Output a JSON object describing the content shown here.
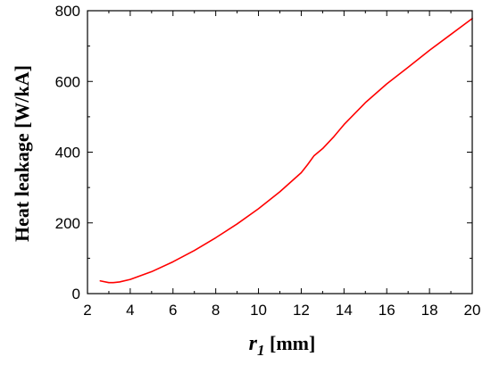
{
  "chart_data": {
    "type": "line",
    "title": "",
    "xlabel": {
      "symbol": "r",
      "subscript": "1",
      "unit": " [mm]"
    },
    "ylabel": "Heat leakage  [W/kA]",
    "xlim": [
      2,
      20
    ],
    "ylim": [
      0,
      800
    ],
    "x_ticks": [
      2,
      4,
      6,
      8,
      10,
      12,
      14,
      16,
      18,
      20
    ],
    "y_ticks": [
      0,
      200,
      400,
      600,
      800
    ],
    "grid": false,
    "legend": "none",
    "series": [
      {
        "color": "#ff0000",
        "x": [
          2.6,
          3.0,
          3.2,
          3.5,
          4.0,
          5.0,
          6.0,
          7.0,
          8.0,
          9.0,
          10.0,
          11.0,
          12.0,
          12.3,
          12.6,
          13.0,
          13.5,
          14.0,
          15.0,
          16.0,
          17.0,
          18.0,
          19.0,
          20.0
        ],
        "y": [
          36,
          31,
          31,
          33,
          40,
          62,
          90,
          122,
          158,
          197,
          240,
          288,
          342,
          365,
          390,
          410,
          442,
          478,
          540,
          593,
          640,
          688,
          733,
          778
        ]
      }
    ]
  }
}
